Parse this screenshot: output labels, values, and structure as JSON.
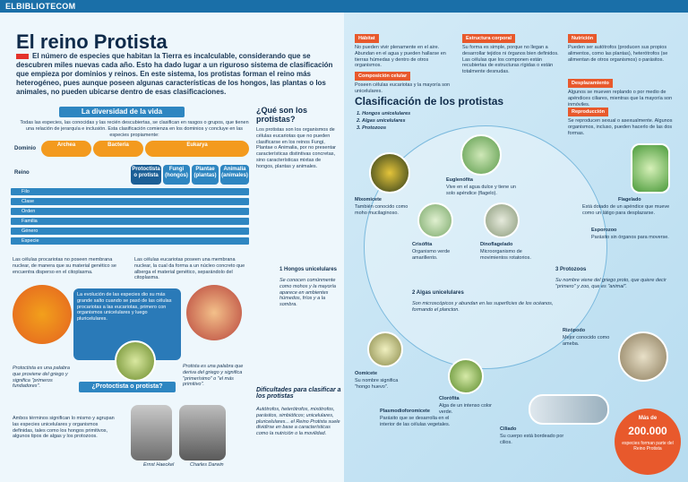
{
  "site": {
    "logo": "ELBIBLIOTECOM"
  },
  "article": {
    "title": "El reino Protista",
    "intro": "El número de especies que habitan la Tierra es incalculable, considerando que se descubren miles nuevas cada año. Esto ha dado lugar a un riguroso sistema de clasificación que empieza por dominios y reinos. En este sistema, los protistas forman el reino más heterogéneo, pues aunque poseen algunas características de los hongos, las plantas o los animales, no pueden ubicarse dentro de esas clasificaciones."
  },
  "diversity": {
    "heading": "La diversidad de la vida",
    "text": "Todas las especies, las conocidas y las recién descubiertas, se clasifican en rasgos o grupos, que tienen una relación de jerarquía e inclusión. Esta clasificación comienza en los dominios y concluye en las especies propiamente:",
    "domain_label": "Dominio",
    "domains": [
      "Archea",
      "Bacteria",
      "Eukarya"
    ],
    "kingdom_label": "Reino",
    "kingdoms": [
      "Protoctista o protista",
      "Fungi (hongos)",
      "Plantae (plantas)",
      "Animalia (animales)"
    ],
    "ranks": [
      "Filo",
      "Clase",
      "Orden",
      "Familia",
      "Género",
      "Especie"
    ],
    "prokaryote_text": "Las células procariotas no poseen membrana nuclear, de manera que su material genético se encuentra disperso en el citoplasma.",
    "eukaryote_text": "Las células eucariotas poseen una membrana nuclear, la cual da forma a un núcleo concreto que alberga el material genético, separándolo del citoplasma.",
    "evolution_text": "La evolución de las especies dio su más grande salto cuando se pasó de las células procariotas a las eucariotas, primero con organismos unicelulares y luego pluricelulares."
  },
  "protoctista": {
    "question": "¿Protoctista o protista?",
    "note1": "Protoctista es una palabra que proviene del griego y significa \"primeros fundadores\".",
    "note2": "Protista es una palabra que deriva del griego y significa \"primerísimo\" o \"el más primitivo\".",
    "text": "Ambos términos significan lo mismo y agrupan las especies unicelulares y organismos definidas, tales como los hongos primitivos, algunos tipos de algas y los protozoos.",
    "caption1": "Ernst Haeckel",
    "caption2": "Charles Darwin"
  },
  "what": {
    "question": "¿Qué son los protistas?",
    "text": "Los protistas son los organismos de células eucariotas que no pueden clasificarse en los reinos Fungi, Plantae o Animalia, por no presentar características distintivas concretas, sino características mixtas de hongos, plantas y animales."
  },
  "difficulties": {
    "heading": "Dificultades para clasificar a los protistas",
    "text": "Autótrofos, heterótrofos, mixótrofos, parásitos, simbióticos; unicelulares, pluricelulares... el Reino Protista suele dividirse en base a características como la nutrición o la movilidad."
  },
  "habitat": {
    "heading": "Hábitat",
    "text": "No pueden vivir plenamente en el aire. Abundan en el agua y pueden hallarse en tierras húmedas y dentro de otros organismos."
  },
  "composition": {
    "heading": "Composición celular",
    "text": "Poseen células eucariotas y la mayoría son unicelulares."
  },
  "structure": {
    "heading": "Estructura corporal",
    "text": "Su forma es simple, porque no llegan a desarrollar tejidos ni órganos bien definidos. Las células que los componen están recubiertas de estructuras rígidas o están totalmente desnudas."
  },
  "nutrition": {
    "heading": "Nutrición",
    "text": "Pueden ser autótrofos (producen sus propios alimentos, como las plantas), heterótrofos (se alimentan de otros organismos) o parásitos."
  },
  "movement": {
    "heading": "Desplazamiento",
    "text": "Algunos se mueven replando o por medio de apéndices ciliares, mientras que la mayoría son inmóviles."
  },
  "reproduction": {
    "heading": "Reproducción",
    "text": "Se reproducen sexual o asexualmente. Algunos organismos, incluso, pueden hacerlo de las dos formas."
  },
  "classification": {
    "heading": "Clasificación de los protistas",
    "items": [
      "1. Hongos unicelulares",
      "2. Algas unicelulares",
      "3. Protozoos"
    ],
    "groups": [
      {
        "label": "1 Hongos unicelulares",
        "text": "Se conocen comúnmente como mohos y la mayoría aparece en ambientes húmedos, fríos y a la sombra."
      },
      {
        "label": "2 Algas unicelulares",
        "text": "Son microscópicos y abundan en las superficies de los océanos, formando el plancton."
      },
      {
        "label": "3 Protozoos",
        "text": "Su nombre viene del griego proto, que quiere decir \"primero\" y zoo, que es \"animal\"."
      }
    ],
    "species": [
      {
        "name": "Mixomicete",
        "text": "También conocido como moho mucilaginoso."
      },
      {
        "name": "Euglenófita",
        "text": "Vive en el agua dulce y tiene un solo apéndice (flagelo)."
      },
      {
        "name": "Crisófita",
        "text": "Organismo verde amarillento."
      },
      {
        "name": "Dinoflagelado",
        "text": "Microorganismo de movimientos rotatorios."
      },
      {
        "name": "Oomicete",
        "text": "Su nombre significa \"hongo huevo\"."
      },
      {
        "name": "Plasmodioforomicete",
        "text": "Parásito que se desarrolla en el interior de las células vegetales."
      },
      {
        "name": "Clorófita",
        "text": "Alga de un intenso color verde."
      },
      {
        "name": "Ciliado",
        "text": "Su cuerpo está bordeado por cilios."
      },
      {
        "name": "Flagelado",
        "text": "Está dotado de un apéndice que mueve como un látigo para desplazarse."
      },
      {
        "name": "Esporozoo",
        "text": "Parásito sin órganos para moverse."
      },
      {
        "name": "Rizópodo",
        "text": "Mejor conocido como ameba."
      }
    ]
  },
  "stat": {
    "prefix": "Más de",
    "number": "200.000",
    "suffix": "especies forman parte del Reino Protista"
  }
}
